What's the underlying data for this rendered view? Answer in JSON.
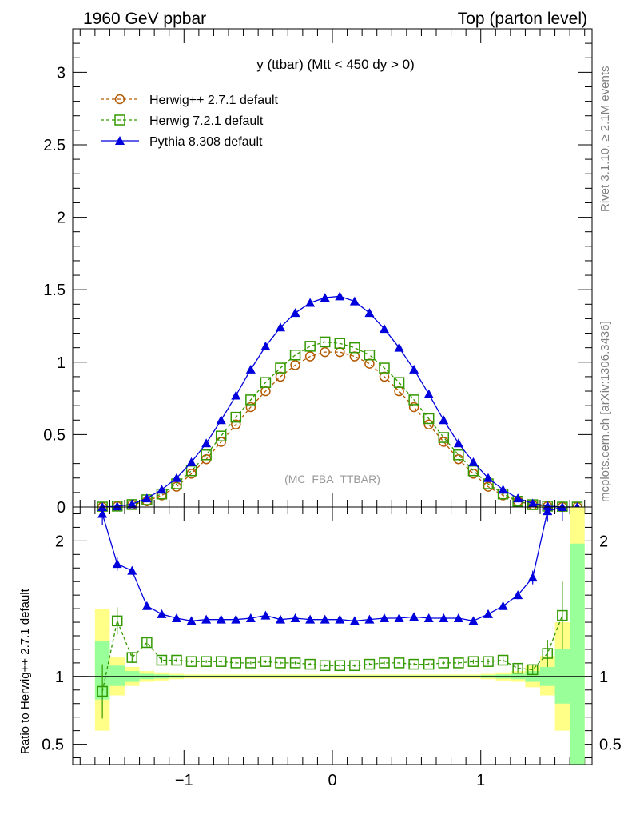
{
  "header": {
    "left": "1960 GeV ppbar",
    "right": "Top (parton level)"
  },
  "side_text": {
    "rivet": "Rivet 3.1.10, ≥ 2.1M events",
    "mcplots": "mcplots.cern.ch [arXiv:1306.3436]"
  },
  "chart_data": [
    {
      "type": "line",
      "title": "y (ttbar) (Mtt < 450 dy > 0)",
      "analysis_label": "(MC_FBA_TTBAR)",
      "ylim": [
        0,
        3.3
      ],
      "xlim": [
        -1.75,
        1.75
      ],
      "y_ticks": [
        "0",
        "0.5",
        "1",
        "1.5",
        "2",
        "2.5",
        "3"
      ],
      "x": [
        -1.55,
        -1.45,
        -1.35,
        -1.25,
        -1.15,
        -1.05,
        -0.95,
        -0.85,
        -0.75,
        -0.65,
        -0.55,
        -0.45,
        -0.35,
        -0.25,
        -0.15,
        -0.05,
        0.05,
        0.15,
        0.25,
        0.35,
        0.45,
        0.55,
        0.65,
        0.75,
        0.85,
        0.95,
        1.05,
        1.15,
        1.25,
        1.35,
        1.45,
        1.55,
        1.65
      ],
      "legend_placement": "top-left",
      "series": [
        {
          "name": "Herwig++ 2.7.1 default",
          "color": "#b35900",
          "marker": "circle",
          "dashed": true,
          "values": [
            0.0,
            0.005,
            0.015,
            0.04,
            0.08,
            0.14,
            0.23,
            0.33,
            0.45,
            0.57,
            0.69,
            0.8,
            0.9,
            0.98,
            1.04,
            1.07,
            1.07,
            1.04,
            0.99,
            0.9,
            0.8,
            0.69,
            0.57,
            0.45,
            0.33,
            0.23,
            0.14,
            0.08,
            0.04,
            0.015,
            0.005,
            0.0,
            0.0
          ]
        },
        {
          "name": "Herwig 7.2.1 default",
          "color": "#339900",
          "marker": "square",
          "dashed": true,
          "values": [
            0.0,
            0.006,
            0.017,
            0.05,
            0.09,
            0.16,
            0.25,
            0.36,
            0.49,
            0.62,
            0.74,
            0.86,
            0.96,
            1.05,
            1.11,
            1.14,
            1.13,
            1.1,
            1.05,
            0.96,
            0.86,
            0.74,
            0.61,
            0.48,
            0.36,
            0.25,
            0.16,
            0.09,
            0.04,
            0.016,
            0.006,
            0.0,
            0.0
          ]
        },
        {
          "name": "Pythia 8.308 default",
          "color": "#0000dd",
          "marker": "triangle",
          "dashed": false,
          "values": [
            0.0,
            0.005,
            0.02,
            0.06,
            0.12,
            0.2,
            0.31,
            0.44,
            0.6,
            0.77,
            0.95,
            1.11,
            1.24,
            1.34,
            1.41,
            1.445,
            1.455,
            1.42,
            1.34,
            1.23,
            1.1,
            0.95,
            0.78,
            0.6,
            0.44,
            0.31,
            0.2,
            0.12,
            0.06,
            0.025,
            0.007,
            0.0,
            0.0
          ]
        }
      ]
    },
    {
      "type": "line",
      "ylabel": "Ratio to Herwig++ 2.7.1 default",
      "xlabel": "",
      "ylim": [
        0.35,
        2.25
      ],
      "xlim": [
        -1.75,
        1.75
      ],
      "y_ticks": [
        "0.5",
        "1",
        "2"
      ],
      "x_ticks": [
        "−1",
        "0",
        "1"
      ],
      "x": [
        -1.55,
        -1.45,
        -1.35,
        -1.25,
        -1.15,
        -1.05,
        -0.95,
        -0.85,
        -0.75,
        -0.65,
        -0.55,
        -0.45,
        -0.35,
        -0.25,
        -0.15,
        -0.05,
        0.05,
        0.15,
        0.25,
        0.35,
        0.45,
        0.55,
        0.65,
        0.75,
        0.85,
        0.95,
        1.05,
        1.15,
        1.25,
        1.35,
        1.45,
        1.55
      ],
      "band_bins": [
        -1.6,
        -1.5,
        -1.4,
        -1.3,
        -1.2,
        -1.1,
        -1.0,
        1.0,
        1.1,
        1.2,
        1.3,
        1.4,
        1.5,
        1.6,
        1.7
      ],
      "band_yellow": [
        [
          0.6,
          1.5
        ],
        [
          0.86,
          1.14
        ],
        [
          0.93,
          1.07
        ],
        [
          0.96,
          1.04
        ],
        [
          0.97,
          1.03
        ],
        [
          0.98,
          1.02
        ],
        [
          0.985,
          1.015
        ],
        [
          0.98,
          1.02
        ],
        [
          0.97,
          1.03
        ],
        [
          0.96,
          1.04
        ],
        [
          0.92,
          1.08
        ],
        [
          0.86,
          1.15
        ],
        [
          0.6,
          1.4
        ],
        [
          0.35,
          2.25
        ]
      ],
      "band_green": [
        [
          0.83,
          1.26
        ],
        [
          0.93,
          1.08
        ],
        [
          0.96,
          1.04
        ],
        [
          0.98,
          1.02
        ],
        [
          0.985,
          1.015
        ],
        [
          0.99,
          1.01
        ],
        [
          0.993,
          1.007
        ],
        [
          0.99,
          1.01
        ],
        [
          0.985,
          1.015
        ],
        [
          0.98,
          1.02
        ],
        [
          0.96,
          1.04
        ],
        [
          0.93,
          1.07
        ],
        [
          0.8,
          1.2
        ],
        [
          0.35,
          1.98
        ]
      ],
      "series": [
        {
          "name": "Herwig 7.2.1 default",
          "color": "#339900",
          "values": [
            0.89,
            1.41,
            1.14,
            1.25,
            1.12,
            1.12,
            1.11,
            1.11,
            1.11,
            1.1,
            1.1,
            1.11,
            1.1,
            1.1,
            1.09,
            1.08,
            1.08,
            1.08,
            1.09,
            1.1,
            1.1,
            1.09,
            1.09,
            1.1,
            1.1,
            1.11,
            1.11,
            1.12,
            1.06,
            1.05,
            1.17,
            1.45
          ],
          "errors": [
            0.2,
            0.1,
            0.04,
            0.03,
            0.02,
            0.015,
            0.01,
            0.01,
            0.01,
            0.01,
            0.01,
            0.01,
            0.01,
            0.01,
            0.01,
            0.01,
            0.01,
            0.01,
            0.01,
            0.01,
            0.01,
            0.01,
            0.01,
            0.01,
            0.01,
            0.015,
            0.02,
            0.02,
            0.03,
            0.04,
            0.1,
            0.25
          ]
        },
        {
          "name": "Pythia 8.308 default",
          "color": "#0000dd",
          "values": [
            2.2,
            1.83,
            1.78,
            1.52,
            1.46,
            1.43,
            1.41,
            1.42,
            1.42,
            1.42,
            1.43,
            1.45,
            1.42,
            1.43,
            1.42,
            1.42,
            1.42,
            1.41,
            1.42,
            1.43,
            1.43,
            1.44,
            1.43,
            1.43,
            1.43,
            1.41,
            1.46,
            1.52,
            1.6,
            1.73,
            2.22,
            2.25
          ],
          "errors": [
            0.08,
            0.05,
            0.03,
            0.02,
            0.015,
            0.01,
            0.01,
            0.01,
            0.01,
            0.01,
            0.01,
            0.01,
            0.01,
            0.01,
            0.01,
            0.01,
            0.01,
            0.01,
            0.01,
            0.01,
            0.01,
            0.01,
            0.01,
            0.01,
            0.01,
            0.01,
            0.015,
            0.02,
            0.03,
            0.05,
            0.08,
            0.1
          ]
        }
      ]
    }
  ]
}
